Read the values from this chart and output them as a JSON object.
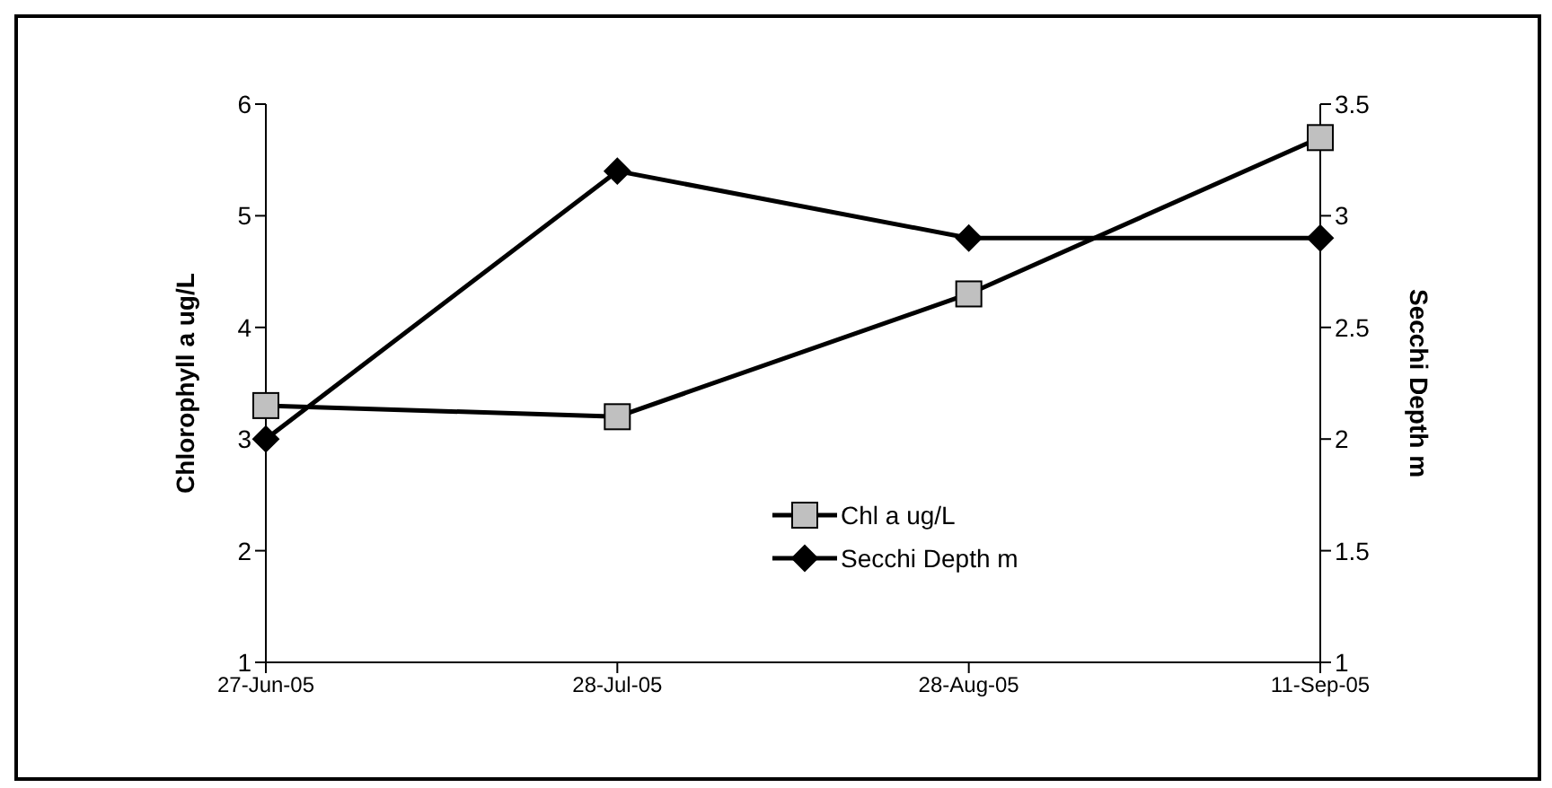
{
  "chart_data": {
    "type": "line",
    "categories": [
      "27-Jun-05",
      "28-Jul-05",
      "28-Aug-05",
      "11-Sep-05"
    ],
    "series": [
      {
        "name": "Chl a ug/L",
        "color": "#000000",
        "marker": "square",
        "values": [
          3.3,
          3.2,
          4.3,
          5.7
        ]
      },
      {
        "name": "Secchi Depth m",
        "color": "#000000",
        "marker": "diamond",
        "axis": "y2",
        "values": [
          2.0,
          3.2,
          2.9,
          2.9
        ]
      }
    ],
    "ylabel": "Chlorophyll a ug/L",
    "y2label": "Secchi Depth m",
    "ylim": [
      1,
      6
    ],
    "yticks": [
      1,
      2,
      3,
      4,
      5,
      6
    ],
    "y2lim": [
      1,
      3.5
    ],
    "y2ticks": [
      1,
      1.5,
      2,
      2.5,
      3,
      3.5
    ],
    "legend": "bottom",
    "grid": false,
    "line_style": "solid"
  }
}
